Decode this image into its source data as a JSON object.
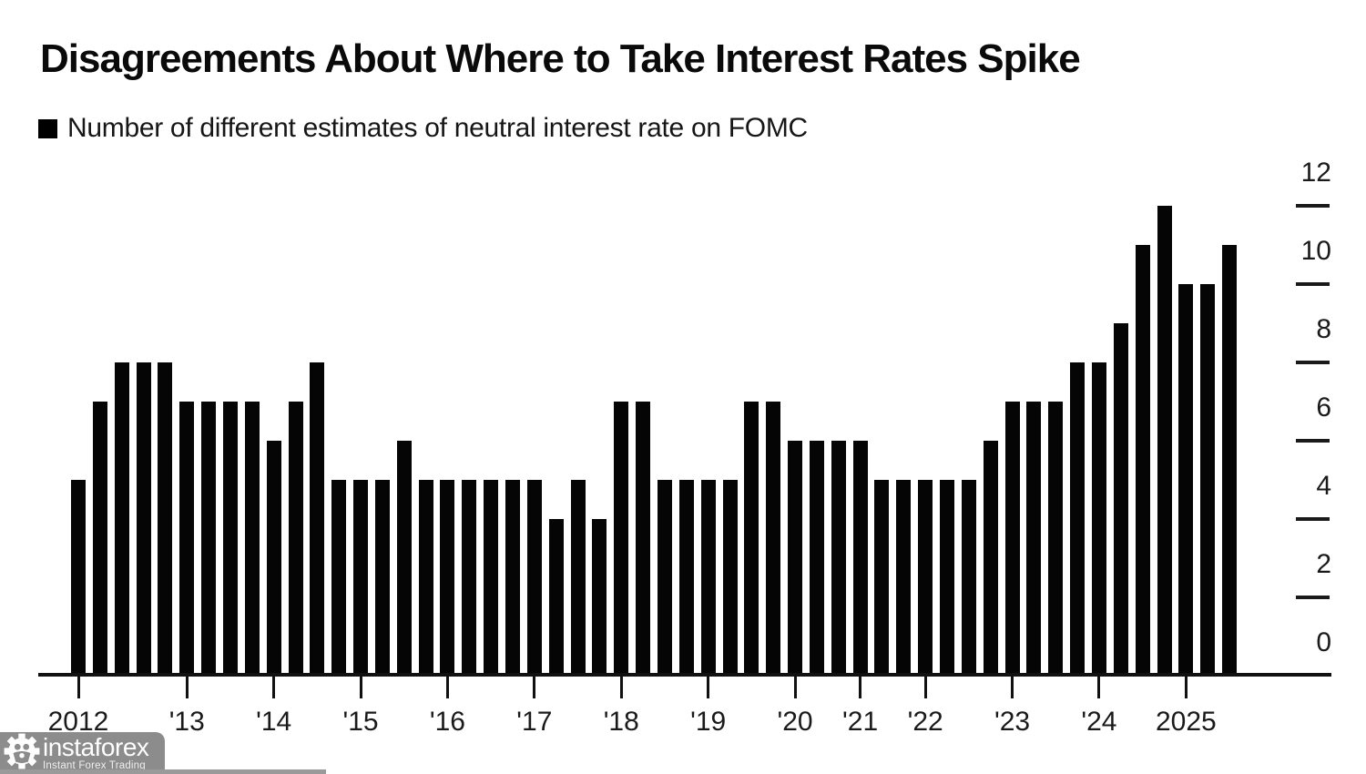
{
  "title": "Disagreements About Where to Take Interest Rates Spike",
  "legend_label": "Number of different estimates of neutral interest rate on FOMC",
  "watermark": {
    "brand": "instaforex",
    "tagline": "Instant Forex Trading"
  },
  "colors": {
    "bar": "#050505",
    "axis": "#111111",
    "label": "#1a1a1a",
    "watermark_bg": "#8c8c8c",
    "watermark_text": "#ffffff"
  },
  "chart_data": {
    "type": "bar",
    "title": "Disagreements About Where to Take Interest Rates Spike",
    "series_label": "Number of different estimates of neutral interest rate on FOMC",
    "xlabel": "",
    "ylabel": "",
    "ylim": [
      0,
      12
    ],
    "yticks": [
      0,
      2,
      4,
      6,
      8,
      10,
      12
    ],
    "grid": false,
    "legend_position": "top-left",
    "y_axis_side": "right",
    "groups": [
      {
        "year_label": "2012",
        "values": [
          5,
          7,
          8,
          8,
          8
        ]
      },
      {
        "year_label": "'13",
        "values": [
          7,
          7,
          7,
          7
        ]
      },
      {
        "year_label": "'14",
        "values": [
          6,
          7,
          8,
          5
        ]
      },
      {
        "year_label": "'15",
        "values": [
          5,
          5,
          6,
          5
        ]
      },
      {
        "year_label": "'16",
        "values": [
          5,
          5,
          5,
          5
        ]
      },
      {
        "year_label": "'17",
        "values": [
          5,
          4,
          5,
          4
        ]
      },
      {
        "year_label": "'18",
        "values": [
          7,
          7,
          5,
          5
        ]
      },
      {
        "year_label": "'19",
        "values": [
          5,
          5,
          7,
          7
        ]
      },
      {
        "year_label": "'20",
        "values": [
          6,
          6,
          6
        ]
      },
      {
        "year_label": "'21",
        "values": [
          6,
          5,
          5
        ]
      },
      {
        "year_label": "'22",
        "values": [
          5,
          5,
          5,
          6
        ]
      },
      {
        "year_label": "'23",
        "values": [
          7,
          7,
          7,
          8
        ]
      },
      {
        "year_label": "'24",
        "values": [
          8,
          9,
          11,
          12
        ]
      },
      {
        "year_label": "2025",
        "values": [
          10,
          10,
          11
        ]
      }
    ]
  }
}
